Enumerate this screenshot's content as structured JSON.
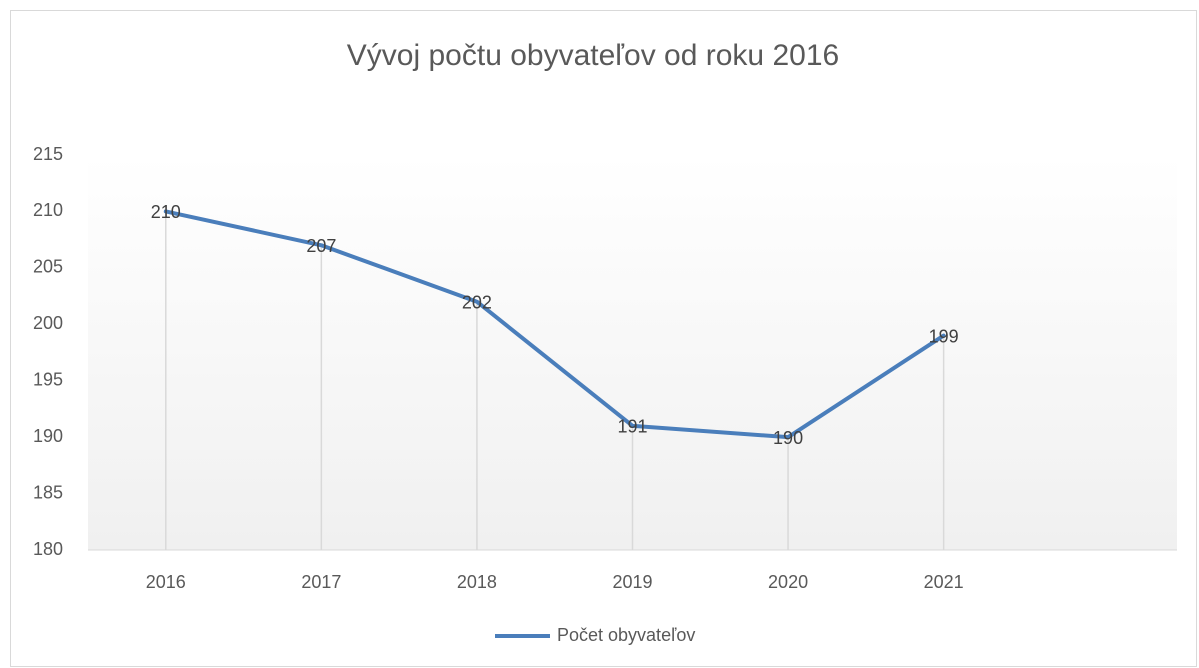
{
  "chart_data": {
    "type": "line",
    "title": "Vývoj počtu obyvateľov od roku 2016",
    "categories": [
      "2016",
      "2017",
      "2018",
      "2019",
      "2020",
      "2021",
      null
    ],
    "series": [
      {
        "name": "Počet obyvateľov",
        "color": "#4a7ebb",
        "values": [
          210,
          207,
          202,
          191,
          190,
          199,
          null
        ]
      }
    ],
    "ylim": [
      180,
      215
    ],
    "yticks": [
      180,
      185,
      190,
      195,
      200,
      205,
      210,
      215
    ],
    "drop_lines": true,
    "data_labels": true,
    "legend": "bottom"
  }
}
